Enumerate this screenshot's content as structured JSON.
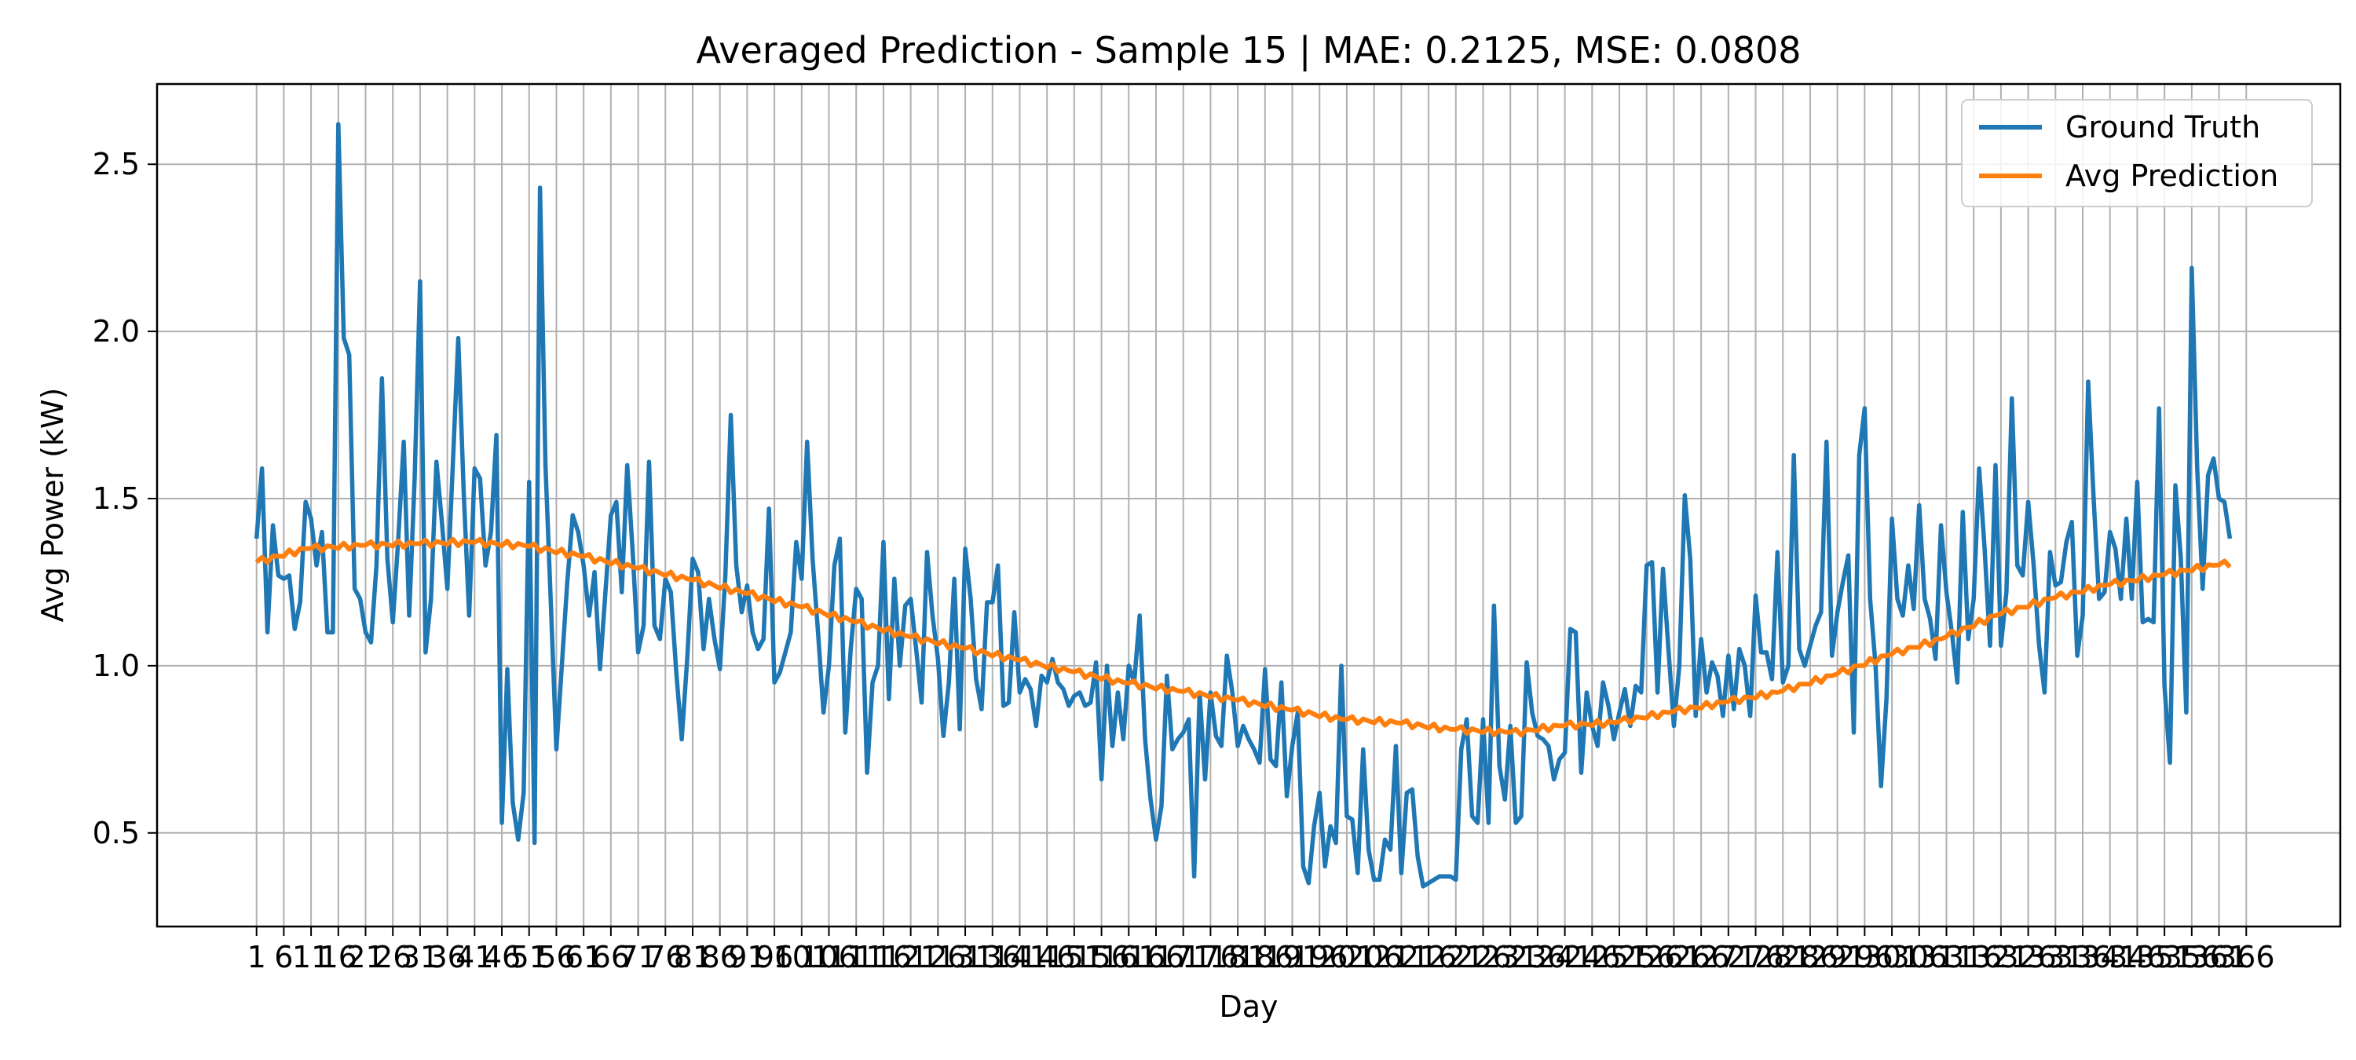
{
  "chart_data": {
    "type": "line",
    "title": "Averaged Prediction - Sample 15 | MAE: 0.2125, MSE: 0.0808",
    "xlabel": "Day",
    "ylabel": "Avg Power (kW)",
    "xlim": [
      -17.25,
      383.25
    ],
    "ylim": [
      0.22,
      2.74
    ],
    "x_ticks": [
      1,
      6,
      11,
      16,
      21,
      26,
      31,
      36,
      41,
      46,
      51,
      56,
      61,
      66,
      71,
      76,
      81,
      86,
      91,
      96,
      101,
      106,
      111,
      116,
      121,
      126,
      131,
      136,
      141,
      146,
      151,
      156,
      161,
      166,
      171,
      176,
      181,
      186,
      191,
      196,
      201,
      206,
      211,
      216,
      221,
      226,
      231,
      236,
      241,
      246,
      251,
      256,
      261,
      266,
      271,
      276,
      281,
      286,
      291,
      296,
      301,
      306,
      311,
      316,
      321,
      326,
      331,
      336,
      341,
      346,
      351,
      356,
      361,
      366
    ],
    "y_ticks": [
      0.5,
      1.0,
      1.5,
      2.0,
      2.5
    ],
    "y_tick_labels": [
      "0.5",
      "1.0",
      "1.5",
      "2.0",
      "2.5"
    ],
    "grid": true,
    "legend_position": "top-right",
    "colors": {
      "ground_truth": "#1f77b4",
      "prediction": "#ff7f0e",
      "grid": "#b0b0b0"
    },
    "series": [
      {
        "name": "Ground Truth",
        "x_start": 1,
        "values": [
          1.38,
          1.59,
          1.1,
          1.42,
          1.27,
          1.26,
          1.27,
          1.11,
          1.19,
          1.49,
          1.44,
          1.3,
          1.4,
          1.1,
          1.1,
          2.62,
          1.98,
          1.93,
          1.23,
          1.2,
          1.1,
          1.07,
          1.3,
          1.86,
          1.32,
          1.13,
          1.38,
          1.67,
          1.15,
          1.56,
          2.15,
          1.04,
          1.2,
          1.61,
          1.43,
          1.23,
          1.6,
          1.98,
          1.52,
          1.15,
          1.59,
          1.56,
          1.3,
          1.4,
          1.69,
          0.53,
          0.99,
          0.59,
          0.48,
          0.62,
          1.55,
          0.47,
          2.43,
          1.6,
          1.18,
          0.75,
          1.0,
          1.25,
          1.45,
          1.4,
          1.3,
          1.15,
          1.28,
          0.99,
          1.22,
          1.45,
          1.49,
          1.22,
          1.6,
          1.34,
          1.04,
          1.12,
          1.61,
          1.12,
          1.08,
          1.26,
          1.22,
          0.98,
          0.78,
          1.02,
          1.32,
          1.28,
          1.05,
          1.2,
          1.08,
          0.99,
          1.27,
          1.75,
          1.3,
          1.16,
          1.24,
          1.1,
          1.05,
          1.08,
          1.47,
          0.95,
          0.98,
          1.04,
          1.1,
          1.37,
          1.26,
          1.67,
          1.32,
          1.1,
          0.86,
          1.0,
          1.3,
          1.38,
          0.8,
          1.05,
          1.23,
          1.2,
          0.68,
          0.95,
          1.0,
          1.37,
          0.9,
          1.26,
          1.0,
          1.18,
          1.2,
          1.05,
          0.89,
          1.34,
          1.15,
          1.02,
          0.79,
          0.95,
          1.26,
          0.81,
          1.35,
          1.2,
          0.96,
          0.87,
          1.19,
          1.19,
          1.3,
          0.88,
          0.89,
          1.16,
          0.92,
          0.96,
          0.93,
          0.82,
          0.97,
          0.95,
          1.02,
          0.95,
          0.93,
          0.88,
          0.91,
          0.92,
          0.88,
          0.89,
          1.01,
          0.66,
          1.0,
          0.76,
          0.92,
          0.78,
          1.0,
          0.95,
          1.15,
          0.78,
          0.6,
          0.48,
          0.58,
          0.97,
          0.75,
          0.78,
          0.8,
          0.84,
          0.37,
          0.92,
          0.66,
          0.92,
          0.79,
          0.76,
          1.03,
          0.92,
          0.76,
          0.82,
          0.78,
          0.75,
          0.71,
          0.99,
          0.72,
          0.7,
          0.95,
          0.61,
          0.76,
          0.86,
          0.4,
          0.35,
          0.52,
          0.62,
          0.4,
          0.52,
          0.47,
          1.0,
          0.55,
          0.54,
          0.38,
          0.75,
          0.45,
          0.36,
          0.36,
          0.48,
          0.45,
          0.76,
          0.38,
          0.62,
          0.63,
          0.43,
          0.34,
          0.35,
          0.36,
          0.37,
          0.37,
          0.37,
          0.36,
          0.75,
          0.84,
          0.55,
          0.53,
          0.84,
          0.53,
          1.18,
          0.7,
          0.6,
          0.82,
          0.53,
          0.55,
          1.01,
          0.86,
          0.79,
          0.78,
          0.76,
          0.66,
          0.72,
          0.74,
          1.11,
          1.1,
          0.68,
          0.92,
          0.82,
          0.76,
          0.95,
          0.88,
          0.78,
          0.86,
          0.93,
          0.82,
          0.94,
          0.92,
          1.3,
          1.31,
          0.92,
          1.29,
          1.05,
          0.82,
          1.0,
          1.51,
          1.32,
          0.85,
          1.08,
          0.92,
          1.01,
          0.97,
          0.85,
          1.03,
          0.87,
          1.05,
          1.0,
          0.85,
          1.21,
          1.04,
          1.04,
          0.96,
          1.34,
          0.95,
          1.0,
          1.63,
          1.05,
          1.0,
          1.06,
          1.12,
          1.16,
          1.67,
          1.03,
          1.16,
          1.25,
          1.33,
          0.8,
          1.63,
          1.77,
          1.2,
          1.0,
          0.64,
          0.9,
          1.44,
          1.2,
          1.15,
          1.3,
          1.17,
          1.48,
          1.2,
          1.14,
          1.02,
          1.42,
          1.22,
          1.1,
          0.95,
          1.46,
          1.08,
          1.2,
          1.59,
          1.35,
          1.06,
          1.6,
          1.06,
          1.22,
          1.8,
          1.3,
          1.27,
          1.49,
          1.3,
          1.06,
          0.92,
          1.34,
          1.24,
          1.25,
          1.37,
          1.43,
          1.03,
          1.15,
          1.85,
          1.5,
          1.2,
          1.22,
          1.4,
          1.35,
          1.2,
          1.44,
          1.2,
          1.55,
          1.13,
          1.14,
          1.13,
          1.77,
          0.94,
          0.71,
          1.54,
          1.32,
          0.86,
          2.19,
          1.59,
          1.23,
          1.57,
          1.62,
          1.5,
          1.49,
          1.38
        ]
      },
      {
        "name": "Avg Prediction",
        "x_control": [
          1,
          10,
          20,
          40,
          50,
          60,
          80,
          100,
          120,
          140,
          160,
          180,
          200,
          210,
          220,
          232,
          240,
          250,
          260,
          270,
          280,
          290,
          300,
          310,
          320,
          330,
          340,
          350,
          360,
          366
        ],
        "y_control": [
          1.31,
          1.35,
          1.36,
          1.37,
          1.36,
          1.33,
          1.26,
          1.18,
          1.09,
          1.02,
          0.95,
          0.9,
          0.84,
          0.83,
          0.81,
          0.8,
          0.82,
          0.83,
          0.86,
          0.89,
          0.92,
          0.97,
          1.03,
          1.08,
          1.15,
          1.2,
          1.24,
          1.27,
          1.3,
          1.31
        ],
        "jitter": [
          0.0,
          0.01,
          -0.01,
          0.005,
          0.0,
          -0.005,
          0.01,
          -0.01,
          0.005,
          0.0
        ]
      }
    ]
  }
}
